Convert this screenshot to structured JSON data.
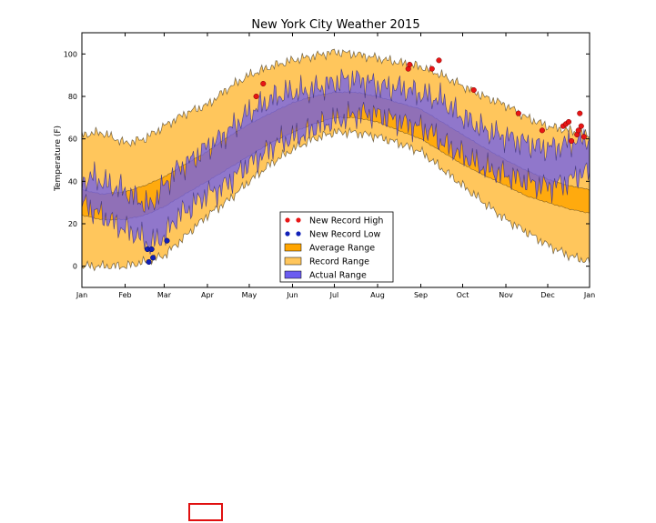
{
  "colors": {
    "record": "#ffc65c",
    "average": "#ffa500",
    "actual": "#6b5cf0",
    "high_marker": "#e81515",
    "low_marker": "#1020b8",
    "outline": "#3a2f1a",
    "box": "#e01010"
  },
  "chart_data": {
    "type": "area",
    "title": "New York City Weather 2015",
    "ylabel": "Temperature (F)",
    "xlabel": "",
    "ylim": [
      -10,
      110
    ],
    "yticks": [
      0,
      20,
      40,
      60,
      80,
      100
    ],
    "xlim": [
      1,
      365
    ],
    "xticks": [
      {
        "label": "Jan",
        "day": 1
      },
      {
        "label": "Feb",
        "day": 32
      },
      {
        "label": "Mar",
        "day": 60
      },
      {
        "label": "Apr",
        "day": 91
      },
      {
        "label": "May",
        "day": 121
      },
      {
        "label": "Jun",
        "day": 152
      },
      {
        "label": "Jul",
        "day": 182
      },
      {
        "label": "Aug",
        "day": 213
      },
      {
        "label": "Sep",
        "day": 244
      },
      {
        "label": "Oct",
        "day": 274
      },
      {
        "label": "Nov",
        "day": 305
      },
      {
        "label": "Dec",
        "day": 335
      },
      {
        "label": "Jan",
        "day": 366
      }
    ],
    "grid": false,
    "legend_position": "lower-center",
    "series": [
      {
        "name": "Record Range",
        "kind": "band",
        "x": [
          1,
          15,
          32,
          46,
          60,
          75,
          91,
          106,
          121,
          136,
          152,
          167,
          182,
          197,
          213,
          228,
          244,
          259,
          274,
          289,
          305,
          320,
          335,
          350,
          365
        ],
        "low": [
          0,
          0,
          0,
          2,
          5,
          14,
          24,
          31,
          40,
          48,
          55,
          60,
          63,
          63,
          61,
          58,
          54,
          46,
          38,
          30,
          22,
          16,
          10,
          5,
          2
        ],
        "high": [
          62,
          63,
          58,
          60,
          66,
          72,
          76,
          84,
          90,
          94,
          97,
          99,
          101,
          100,
          98,
          96,
          94,
          90,
          85,
          80,
          76,
          70,
          66,
          64,
          62
        ]
      },
      {
        "name": "Average Range",
        "kind": "band",
        "x": [
          1,
          15,
          32,
          46,
          60,
          75,
          91,
          106,
          121,
          136,
          152,
          167,
          182,
          197,
          213,
          228,
          244,
          259,
          274,
          289,
          305,
          320,
          335,
          350,
          365
        ],
        "low": [
          24,
          22,
          22,
          24,
          28,
          34,
          40,
          46,
          52,
          58,
          63,
          67,
          70,
          70,
          68,
          64,
          60,
          54,
          48,
          43,
          38,
          33,
          30,
          27,
          25
        ],
        "high": [
          36,
          34,
          35,
          38,
          42,
          48,
          54,
          61,
          67,
          72,
          77,
          80,
          82,
          82,
          80,
          77,
          74,
          68,
          62,
          56,
          50,
          45,
          41,
          38,
          36
        ]
      },
      {
        "name": "Actual Range",
        "kind": "band",
        "x": [
          1,
          10,
          20,
          30,
          40,
          50,
          60,
          70,
          80,
          90,
          100,
          110,
          120,
          130,
          140,
          150,
          160,
          170,
          180,
          190,
          200,
          210,
          220,
          230,
          240,
          250,
          260,
          270,
          280,
          290,
          300,
          310,
          320,
          330,
          340,
          350,
          360,
          365
        ],
        "low": [
          30,
          26,
          22,
          18,
          15,
          10,
          14,
          24,
          28,
          34,
          36,
          42,
          48,
          52,
          58,
          60,
          62,
          66,
          68,
          70,
          72,
          72,
          70,
          68,
          66,
          64,
          58,
          54,
          50,
          46,
          44,
          42,
          40,
          38,
          38,
          40,
          44,
          44
        ],
        "high": [
          40,
          42,
          38,
          36,
          32,
          28,
          38,
          46,
          50,
          56,
          60,
          66,
          72,
          76,
          80,
          82,
          82,
          84,
          86,
          88,
          88,
          86,
          84,
          84,
          82,
          80,
          78,
          72,
          68,
          64,
          62,
          60,
          58,
          56,
          56,
          58,
          60,
          60
        ]
      },
      {
        "name": "New Record High",
        "kind": "scatter",
        "points": [
          {
            "x": 126,
            "y": 80
          },
          {
            "x": 131,
            "y": 86
          },
          {
            "x": 235,
            "y": 93
          },
          {
            "x": 236,
            "y": 95
          },
          {
            "x": 252,
            "y": 93
          },
          {
            "x": 257,
            "y": 97
          },
          {
            "x": 282,
            "y": 83
          },
          {
            "x": 314,
            "y": 72
          },
          {
            "x": 331,
            "y": 64
          },
          {
            "x": 346,
            "y": 66
          },
          {
            "x": 348,
            "y": 67
          },
          {
            "x": 350,
            "y": 68
          },
          {
            "x": 352,
            "y": 59
          },
          {
            "x": 356,
            "y": 62
          },
          {
            "x": 357,
            "y": 64
          },
          {
            "x": 358,
            "y": 72
          },
          {
            "x": 359,
            "y": 66
          },
          {
            "x": 361,
            "y": 61
          }
        ]
      },
      {
        "name": "New Record Low",
        "kind": "scatter",
        "points": [
          {
            "x": 48,
            "y": 8
          },
          {
            "x": 49,
            "y": 2
          },
          {
            "x": 51,
            "y": 8
          },
          {
            "x": 52,
            "y": 4
          },
          {
            "x": 62,
            "y": 12
          }
        ]
      }
    ]
  }
}
